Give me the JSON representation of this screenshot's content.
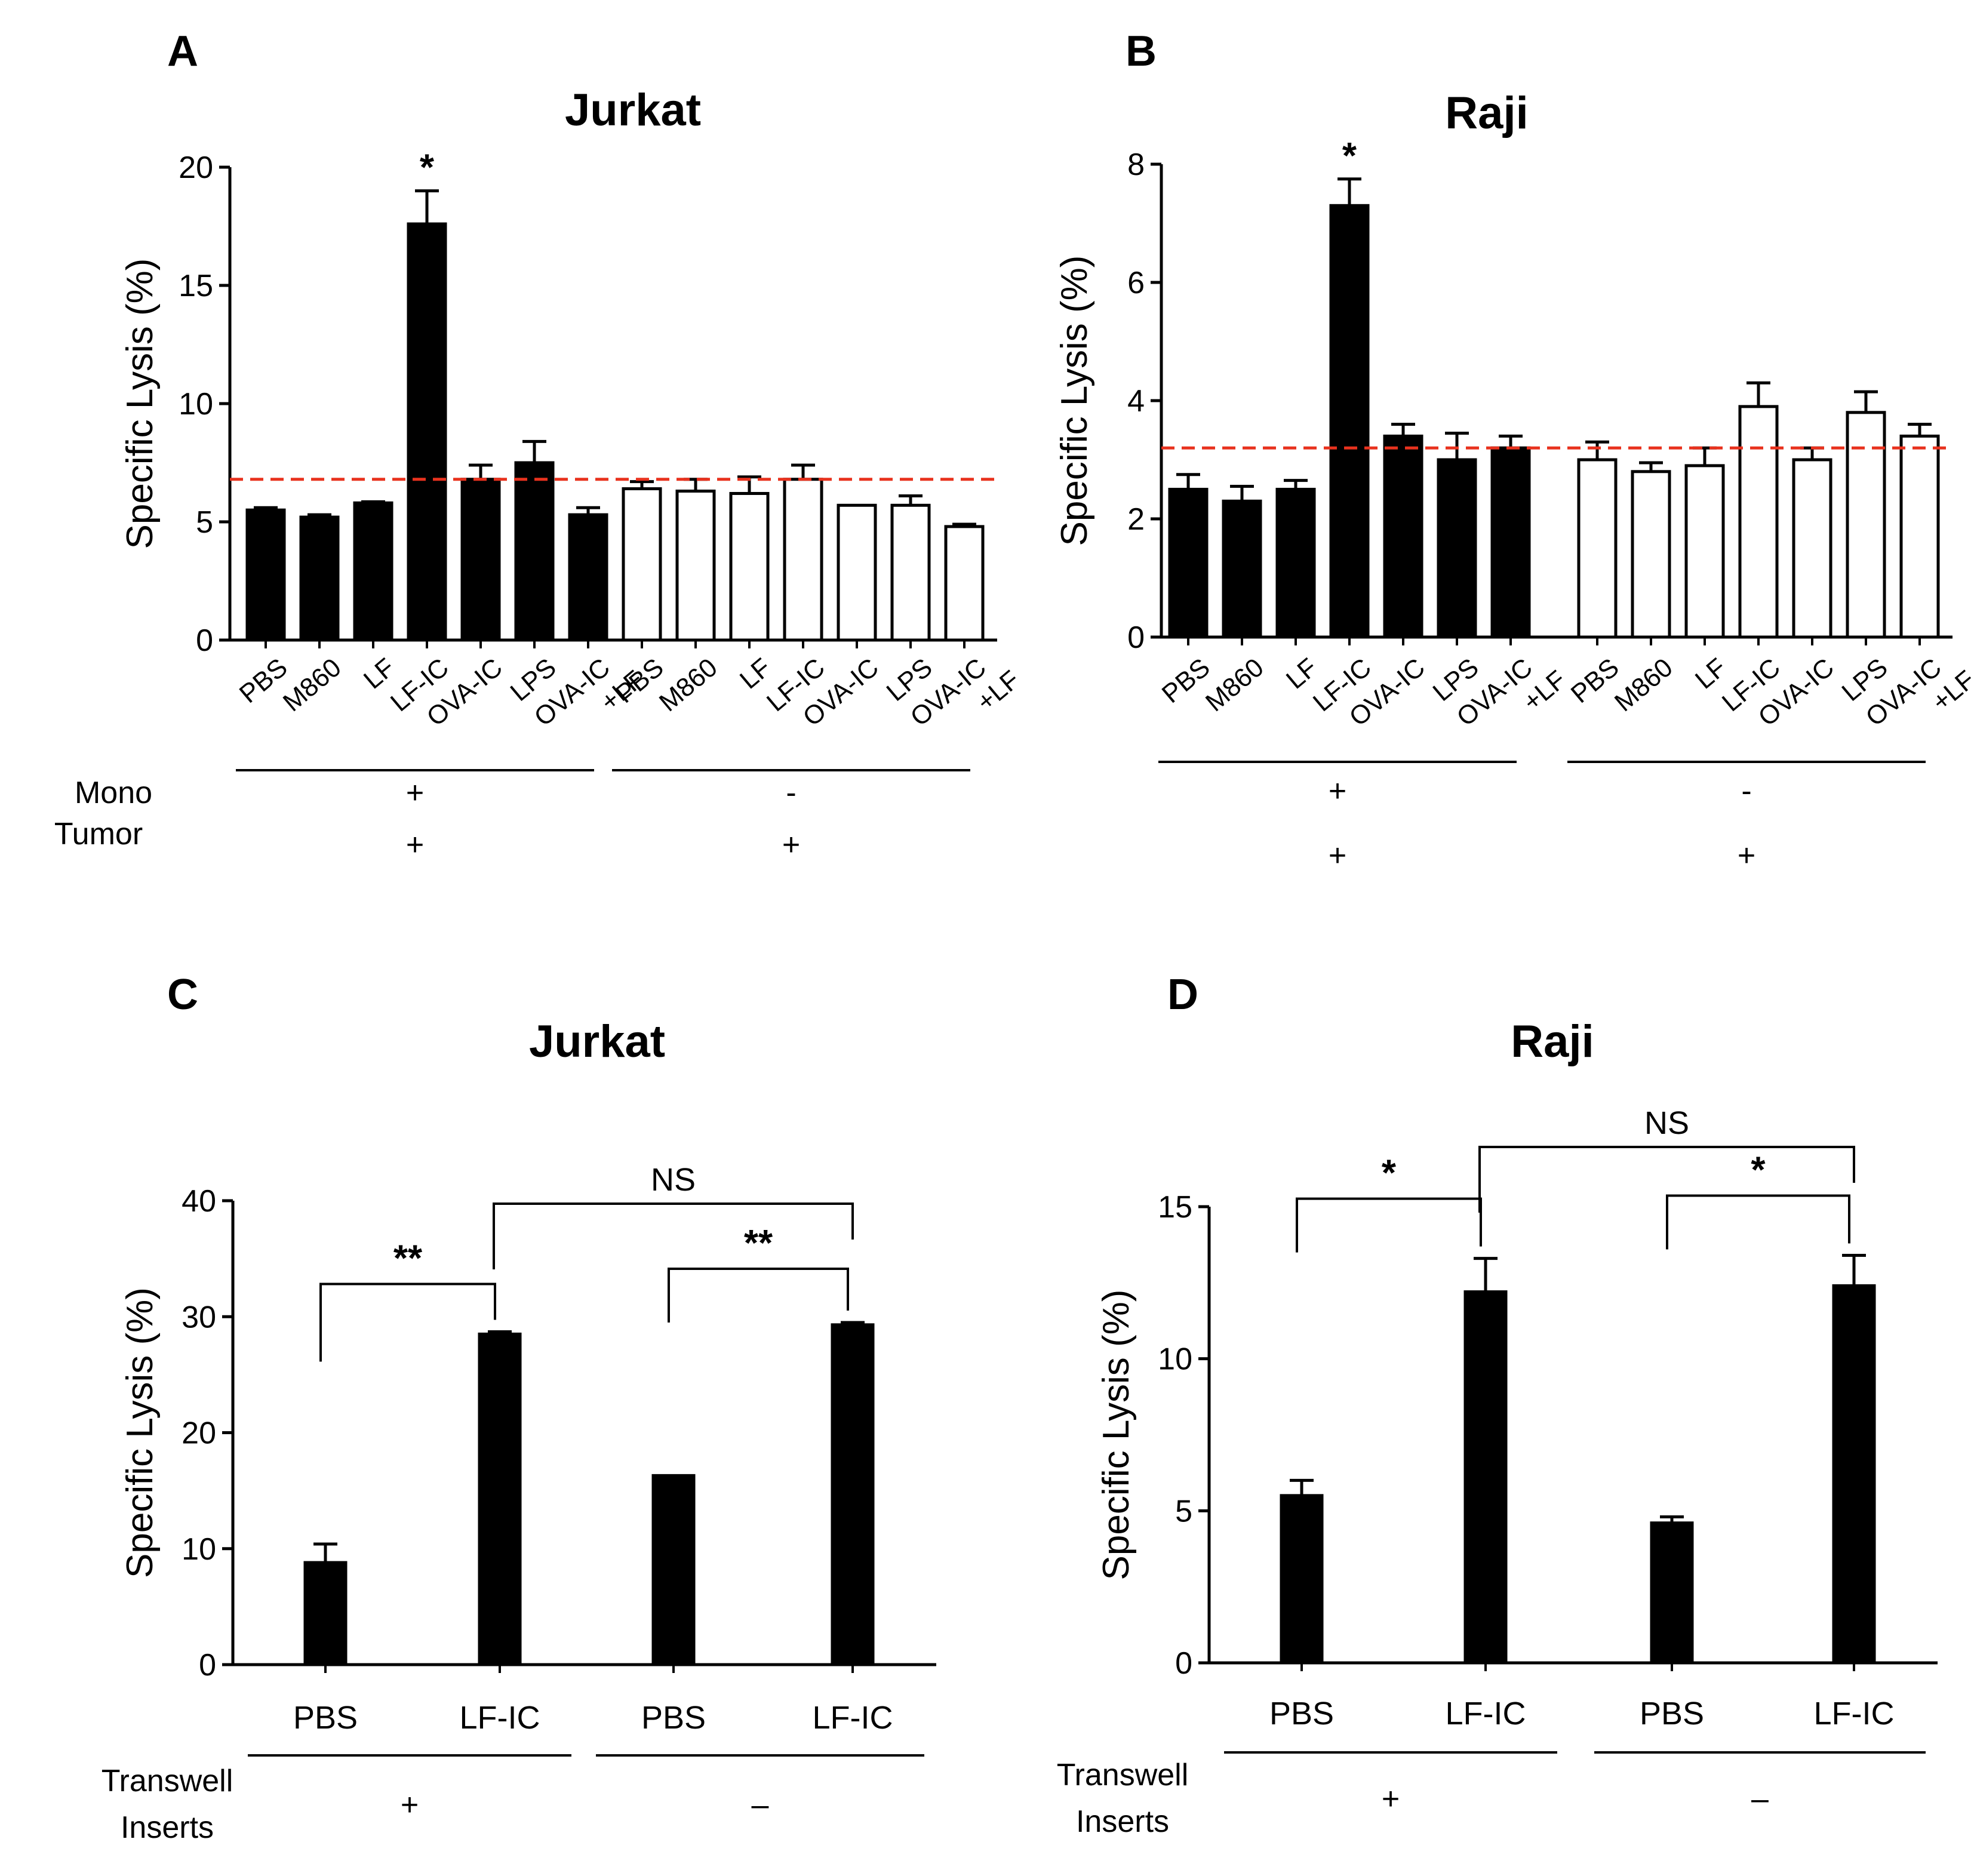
{
  "chart_data": [
    {
      "panel": "A",
      "type": "bar",
      "title": "Jurkat",
      "ylabel": "Specific Lysis (%)",
      "ylim": [
        0,
        20
      ],
      "yticks": [
        0,
        5,
        10,
        15,
        20
      ],
      "categories": [
        "PBS",
        "M860",
        "LF",
        "LF-IC",
        "OVA-IC",
        "LPS",
        "OVA-IC\n+LF",
        "PBS",
        "M860",
        "LF",
        "LF-IC",
        "OVA-IC",
        "LPS",
        "OVA-IC\n+LF"
      ],
      "values": [
        5.5,
        5.2,
        5.8,
        17.6,
        6.8,
        7.5,
        5.3,
        6.4,
        6.3,
        6.2,
        6.8,
        5.7,
        5.7,
        4.8
      ],
      "errors": [
        0.1,
        0.1,
        0.05,
        1.4,
        0.6,
        0.9,
        0.3,
        0.3,
        0.5,
        0.7,
        0.6,
        0.0,
        0.4,
        0.1
      ],
      "fills": [
        "black",
        "black",
        "black",
        "black",
        "black",
        "black",
        "black",
        "white",
        "white",
        "white",
        "white",
        "white",
        "white",
        "white"
      ],
      "reference_line": 6.8,
      "significance": [
        {
          "bar": 3,
          "label": "*"
        }
      ],
      "groups": [
        {
          "start": 0,
          "end": 6,
          "mono": "+",
          "tumor": "+"
        },
        {
          "start": 7,
          "end": 13,
          "mono": "-",
          "tumor": "+"
        }
      ],
      "row_labels": [
        "Mono",
        "Tumor"
      ]
    },
    {
      "panel": "B",
      "type": "bar",
      "title": "Raji",
      "ylabel": "Specific Lysis (%)",
      "ylim": [
        0,
        8
      ],
      "yticks": [
        0,
        2,
        4,
        6,
        8
      ],
      "categories": [
        "PBS",
        "M860",
        "LF",
        "LF-IC",
        "OVA-IC",
        "LPS",
        "OVA-IC\n+LF",
        "PBS",
        "M860",
        "LF",
        "LF-IC",
        "OVA-IC",
        "LPS",
        "OVA-IC\n+LF"
      ],
      "values": [
        2.5,
        2.3,
        2.5,
        7.3,
        3.4,
        3.0,
        3.2,
        3.0,
        2.8,
        2.9,
        3.9,
        3.0,
        3.8,
        3.4
      ],
      "errors": [
        0.25,
        0.25,
        0.15,
        0.45,
        0.2,
        0.45,
        0.2,
        0.3,
        0.15,
        0.3,
        0.4,
        0.2,
        0.35,
        0.2
      ],
      "fills": [
        "black",
        "black",
        "black",
        "black",
        "black",
        "black",
        "black",
        "white",
        "white",
        "white",
        "white",
        "white",
        "white",
        "white"
      ],
      "reference_line": 3.2,
      "significance": [
        {
          "bar": 3,
          "label": "*"
        }
      ],
      "groups": [
        {
          "start": 0,
          "end": 6,
          "mono": "+",
          "tumor": "+"
        },
        {
          "start": 7,
          "end": 13,
          "mono": "-",
          "tumor": "+"
        }
      ]
    },
    {
      "panel": "C",
      "type": "bar",
      "title": "Jurkat",
      "ylabel": "Specific Lysis (%)",
      "ylim": [
        0,
        40
      ],
      "yticks": [
        0,
        10,
        20,
        30,
        40
      ],
      "categories": [
        "PBS",
        "LF-IC",
        "PBS",
        "LF-IC"
      ],
      "values": [
        8.8,
        28.5,
        16.3,
        29.3
      ],
      "errors": [
        1.6,
        0.2,
        0.0,
        0.2
      ],
      "brackets": [
        {
          "from": 0,
          "to": 1,
          "label": "**",
          "level": 1
        },
        {
          "from": 2,
          "to": 3,
          "label": "**",
          "level": 1
        },
        {
          "from": 1,
          "to": 3,
          "label": "NS",
          "level": 2
        }
      ],
      "groups": [
        {
          "start": 0,
          "end": 1,
          "label": "+"
        },
        {
          "start": 2,
          "end": 3,
          "label": "–"
        }
      ],
      "row_labels": [
        "Transwell",
        "Inserts"
      ]
    },
    {
      "panel": "D",
      "type": "bar",
      "title": "Raji",
      "ylabel": "Specific Lysis (%)",
      "ylim": [
        0,
        15
      ],
      "yticks": [
        0,
        5,
        10,
        15
      ],
      "categories": [
        "PBS",
        "LF-IC",
        "PBS",
        "LF-IC"
      ],
      "values": [
        5.5,
        12.2,
        4.6,
        12.4
      ],
      "errors": [
        0.5,
        1.1,
        0.2,
        1.0
      ],
      "brackets": [
        {
          "from": 0,
          "to": 1,
          "label": "*",
          "level": 1
        },
        {
          "from": 2,
          "to": 3,
          "label": "*",
          "level": 1
        },
        {
          "from": 1,
          "to": 3,
          "label": "NS",
          "level": 2
        }
      ],
      "groups": [
        {
          "start": 0,
          "end": 1,
          "label": "+"
        },
        {
          "start": 2,
          "end": 3,
          "label": "–"
        }
      ],
      "row_labels": [
        "Transwell",
        "Inserts"
      ]
    }
  ],
  "colors": {
    "bar_black": "#000000",
    "bar_white": "#ffffff",
    "reference_line": "#e8321e"
  }
}
